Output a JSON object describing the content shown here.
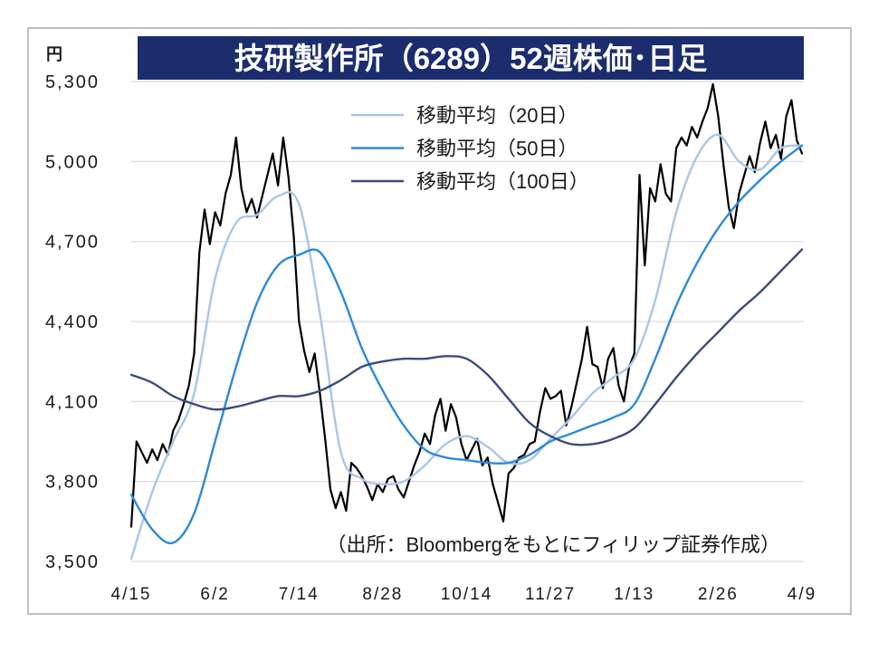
{
  "chart_data": {
    "type": "line",
    "title": "技研製作所（6289）52週株価･日足",
    "y_unit": "円",
    "ylim": [
      3500,
      5300
    ],
    "y_ticks": [
      3500,
      3800,
      4100,
      4400,
      4700,
      5000,
      5300
    ],
    "y_tick_labels": [
      "3,500",
      "3,800",
      "4,100",
      "4,400",
      "4,700",
      "5,000",
      "5,300"
    ],
    "x_tick_labels": [
      "4/15",
      "6/2",
      "7/14",
      "8/28",
      "10/14",
      "11/27",
      "1/13",
      "2/26",
      "4/9"
    ],
    "grid": true,
    "legend_position": "top-center",
    "series": [
      {
        "color": "#000000",
        "values": [
          3630,
          3950,
          3910,
          3870,
          3920,
          3880,
          3940,
          3900,
          3990,
          4030,
          4090,
          4160,
          4280,
          4660,
          4820,
          4690,
          4810,
          4760,
          4880,
          4950,
          5090,
          4900,
          4810,
          4860,
          4790,
          4870,
          4950,
          5030,
          4910,
          5090,
          4940,
          4720,
          4400,
          4290,
          4210,
          4280,
          4130,
          3960,
          3770,
          3700,
          3760,
          3690,
          3870,
          3850,
          3820,
          3780,
          3730,
          3790,
          3760,
          3810,
          3820,
          3770,
          3740,
          3800,
          3860,
          3910,
          3980,
          3940,
          4050,
          4110,
          3990,
          4090,
          4040,
          3940,
          3880,
          3920,
          3960,
          3860,
          3890,
          3790,
          3720,
          3650,
          3830,
          3850,
          3890,
          3900,
          3940,
          3950,
          4060,
          4150,
          4110,
          4120,
          4140,
          4010,
          4080,
          4170,
          4260,
          4380,
          4240,
          4230,
          4150,
          4260,
          4300,
          4160,
          4100,
          4230,
          4280,
          4950,
          4610,
          4900,
          4850,
          4990,
          4880,
          4850,
          5050,
          5090,
          5060,
          5130,
          5090,
          5150,
          5200,
          5290,
          5170,
          4990,
          4830,
          4750,
          4880,
          4950,
          5020,
          4960,
          5070,
          5150,
          5050,
          5100,
          5010,
          5170,
          5230,
          5080,
          5030
        ]
      },
      {
        "name": "移動平均（20日）",
        "color": "#a9c6e8",
        "values": [
          3510,
          3760,
          3950,
          4130,
          4560,
          4770,
          4800,
          4870,
          4840,
          4430,
          3910,
          3810,
          3790,
          3800,
          3860,
          3940,
          3970,
          3930,
          3870,
          3880,
          3960,
          4040,
          4130,
          4190,
          4260,
          4480,
          4810,
          5020,
          5100,
          5000,
          4970,
          5050,
          5060
        ]
      },
      {
        "name": "移動平均（50日）",
        "color": "#2e8ad8",
        "values": [
          3750,
          3620,
          3570,
          3680,
          3950,
          4230,
          4470,
          4610,
          4650,
          4660,
          4510,
          4300,
          4140,
          4010,
          3920,
          3890,
          3880,
          3870,
          3870,
          3900,
          3950,
          3980,
          4010,
          4040,
          4090,
          4260,
          4460,
          4620,
          4750,
          4850,
          4930,
          5000,
          5060
        ]
      },
      {
        "name": "移動平均（100日）",
        "color": "#3c4d7a",
        "values": [
          4200,
          4170,
          4120,
          4090,
          4070,
          4080,
          4100,
          4120,
          4120,
          4140,
          4180,
          4230,
          4250,
          4260,
          4260,
          4270,
          4260,
          4200,
          4110,
          4020,
          3970,
          3940,
          3940,
          3960,
          4000,
          4090,
          4190,
          4280,
          4360,
          4440,
          4510,
          4590,
          4670
        ]
      }
    ],
    "source_note": "（出所：Bloombergをもとにフィリップ証券作成）"
  },
  "colors": {
    "title_background": "#1c2d6e",
    "title_text": "#ffffff",
    "text": "#1a1a1a",
    "grid": "#d9d9d9",
    "frame": "#bfbfbf",
    "background": "#ffffff"
  }
}
